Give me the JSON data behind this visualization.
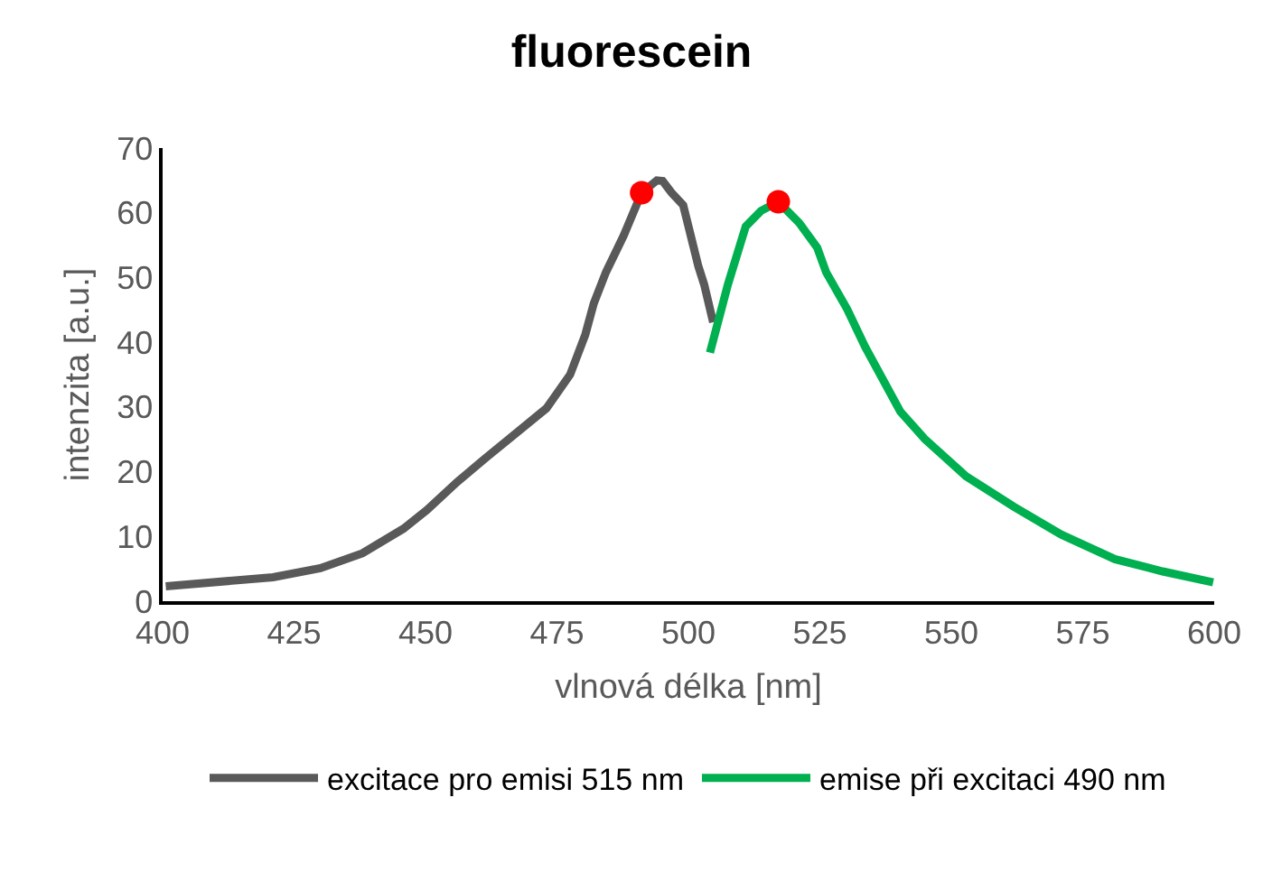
{
  "chart_data": {
    "type": "line",
    "title": "fluorescein",
    "xlabel": "vlnová délka [nm]",
    "ylabel": "intenzita [a.u.]",
    "xlim": [
      400,
      600
    ],
    "xticks": [
      400,
      425,
      450,
      475,
      500,
      525,
      550,
      575,
      600
    ],
    "ylim": [
      0,
      70
    ],
    "yticks": [
      0,
      10,
      20,
      30,
      40,
      50,
      60,
      70
    ],
    "grid": false,
    "legend": "bottom",
    "marker": "none",
    "line_style": "solid",
    "series": [
      {
        "name": "excitace pro emisi 515 nm",
        "color": "#595959",
        "x": [
          400.6,
          421,
          430,
          438,
          445.8,
          450.3,
          456,
          461.7,
          467.3,
          473,
          477.5,
          480.4,
          482,
          484.3,
          487.7,
          491.1,
          494,
          495.1,
          496.8,
          499,
          501.9,
          503,
          504.7
        ],
        "values": [
          2.3,
          3.7,
          5.1,
          7.4,
          11.2,
          14.1,
          18.4,
          22.3,
          26,
          29.8,
          35,
          41.2,
          46,
          50.8,
          56.5,
          63.1,
          65,
          64.9,
          63.1,
          61.2,
          51.7,
          48.9,
          43.1
        ]
      },
      {
        "name": "emise při excitaci 490 nm",
        "color": "#00b050",
        "x": [
          504.1,
          507.5,
          510.9,
          513.8,
          517.1,
          521.1,
          524.5,
          526.2,
          530.2,
          533.6,
          540.3,
          544.9,
          552.8,
          561.9,
          570.9,
          581.1,
          590.2,
          599.8
        ],
        "values": [
          38.4,
          48.9,
          57.9,
          60.3,
          61.7,
          58.4,
          54.6,
          50.8,
          45.1,
          39.3,
          29.3,
          25.1,
          19.3,
          14.6,
          10.3,
          6.5,
          4.6,
          2.9
        ]
      },
      {
        "type": "scatter",
        "color": "#ff0000",
        "marker": "circle",
        "x": [
          491.1,
          517.1
        ],
        "values": [
          63.1,
          61.7
        ]
      }
    ]
  }
}
